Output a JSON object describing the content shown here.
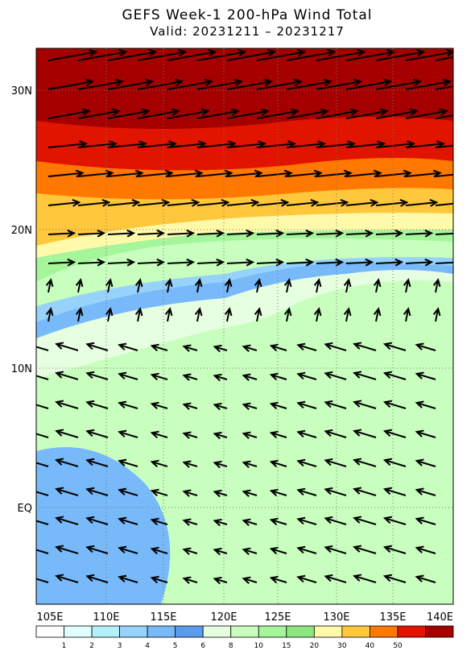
{
  "title": "GEFS Week-1 200-hPa Wind Total",
  "subtitle": "Valid: 20231211 – 20231217",
  "lon_labels": [
    "105E",
    "110E",
    "115E",
    "120E",
    "125E",
    "130E",
    "135E",
    "140E"
  ],
  "lat_labels": [
    "30N",
    "20N",
    "10N",
    "EQ"
  ],
  "colorbar": {
    "levels": [
      1,
      2,
      3,
      4,
      5,
      6,
      8,
      10,
      15,
      20,
      30,
      40,
      50
    ],
    "colors": [
      "#ffffff",
      "#e1ffff",
      "#b4f0fa",
      "#96d2fa",
      "#78b9fa",
      "#5a9bf0",
      "#e6ffe1",
      "#c8ffbe",
      "#a5f59b",
      "#8ce67d",
      "#fffaaa",
      "#ffc83c",
      "#ff7800",
      "#e11400",
      "#a50000"
    ]
  }
}
